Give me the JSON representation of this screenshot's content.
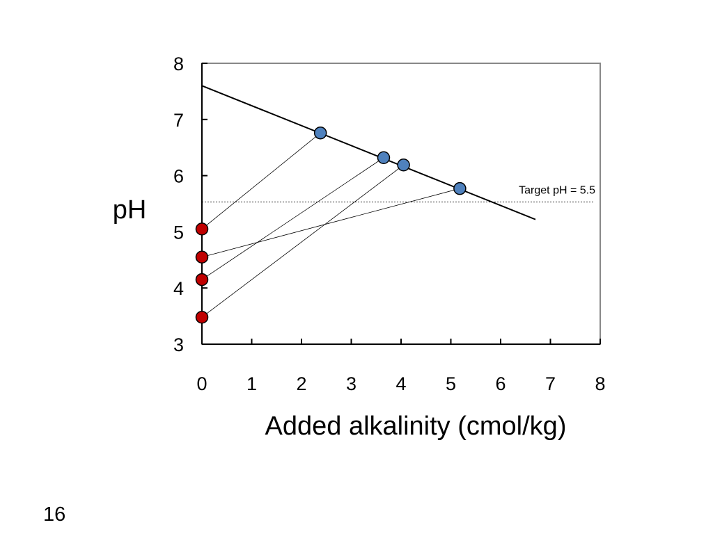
{
  "chart_data": {
    "type": "scatter",
    "title": "",
    "xlabel": "Added alkalinity (cmol/kg)",
    "ylabel": "pH",
    "xlim": [
      0,
      8
    ],
    "ylim": [
      3,
      8
    ],
    "x_ticks": [
      "0",
      "1",
      "2",
      "3",
      "4",
      "5",
      "6",
      "7",
      "8"
    ],
    "y_ticks": [
      "3",
      "4",
      "5",
      "6",
      "7",
      "8"
    ],
    "grid": false,
    "legend": "none",
    "buffer_line": {
      "x": [
        0,
        6.7
      ],
      "y": [
        7.6,
        5.22
      ]
    },
    "target": {
      "y": 5.53,
      "label": "Target pH = 5.5"
    },
    "initial_points": {
      "color": "#C00000",
      "x": [
        0,
        0,
        0,
        0
      ],
      "y": [
        5.05,
        4.55,
        4.15,
        3.48
      ]
    },
    "final_points": {
      "color": "#4F81BD",
      "x": [
        2.38,
        3.65,
        4.05,
        5.18
      ],
      "y": [
        6.76,
        6.32,
        6.19,
        5.77
      ]
    },
    "connectors": [
      [
        0,
        0
      ],
      [
        1,
        3
      ],
      [
        2,
        1
      ],
      [
        3,
        2
      ]
    ],
    "colors": {
      "initial": "#C00000",
      "final": "#4F81BD",
      "frame": "#888888",
      "line": "#000000"
    }
  },
  "slide": {
    "number": "16"
  }
}
